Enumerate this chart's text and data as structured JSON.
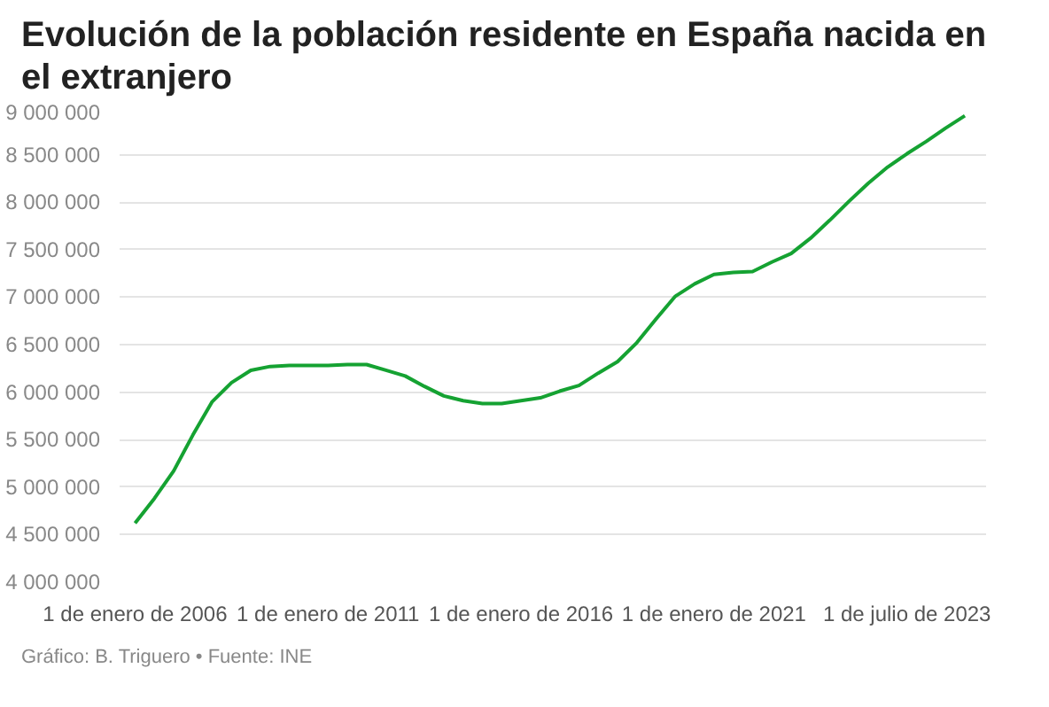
{
  "chart_data": {
    "type": "line",
    "title": "Evolución de la población residente en España nacida en el extranjero",
    "categories": [
      "1 de enero de 2006",
      null,
      null,
      null,
      null,
      null,
      null,
      null,
      null,
      null,
      "1 de enero de 2011",
      null,
      null,
      null,
      null,
      null,
      null,
      null,
      null,
      null,
      "1 de enero de 2016",
      null,
      null,
      null,
      null,
      null,
      null,
      null,
      null,
      null,
      "1 de enero de 2021",
      null,
      null,
      null,
      null,
      null,
      null,
      null,
      null,
      null,
      "1 de julio de 2023",
      null,
      null,
      null
    ],
    "series": [
      {
        "color": "#15a232",
        "values": [
          4620000,
          4880000,
          5170000,
          5550000,
          5900000,
          6100000,
          6230000,
          6270000,
          6280000,
          6280000,
          6280000,
          6290000,
          6290000,
          6230000,
          6170000,
          6060000,
          5960000,
          5910000,
          5880000,
          5880000,
          5910000,
          5940000,
          6010000,
          6070000,
          6200000,
          6320000,
          6520000,
          6770000,
          7010000,
          7140000,
          7240000,
          7260000,
          7270000,
          7370000,
          7460000,
          7620000,
          7810000,
          8010000,
          8200000,
          8370000,
          8510000,
          8640000,
          8780000,
          8910000
        ]
      }
    ],
    "ylim": [
      4000000,
      9000000
    ],
    "yticks": [
      {
        "value": 4000000,
        "label": "4 000 000"
      },
      {
        "value": 4500000,
        "label": "4 500 000"
      },
      {
        "value": 5000000,
        "label": "5 000 000"
      },
      {
        "value": 5500000,
        "label": "5 500 000"
      },
      {
        "value": 6000000,
        "label": "6 000 000"
      },
      {
        "value": 6500000,
        "label": "6 500 000"
      },
      {
        "value": 7000000,
        "label": "7 000 000"
      },
      {
        "value": 7500000,
        "label": "7 500 000"
      },
      {
        "value": 8000000,
        "label": "8 000 000"
      },
      {
        "value": 8500000,
        "label": "8 500 000"
      },
      {
        "value": 9000000,
        "label": "9 000 000"
      }
    ],
    "grid": "y",
    "marker": "none",
    "line_style": "solid",
    "annotations": [
      "Gráfico: B. Triguero • Fuente: INE"
    ]
  }
}
